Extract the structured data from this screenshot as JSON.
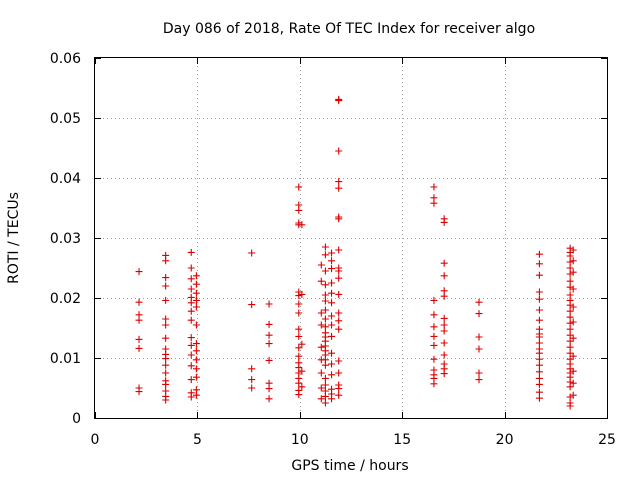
{
  "chart_data": {
    "type": "scatter",
    "title": "Day 086 of 2018, Rate Of TEC Index for receiver algo",
    "xlabel": "GPS time / hours",
    "ylabel": "ROTI / TECUs",
    "xlim": [
      0,
      25
    ],
    "ylim": [
      0,
      0.06
    ],
    "xticks": [
      0,
      5,
      10,
      15,
      20,
      25
    ],
    "yticks": [
      0,
      0.01,
      0.02,
      0.03,
      0.04,
      0.05,
      0.06
    ],
    "xtick_labels": [
      "0",
      "5",
      "10",
      "15",
      "20",
      "25"
    ],
    "ytick_labels": [
      "0",
      "0.01",
      "0.02",
      "0.03",
      "0.04",
      "0.05",
      "0.06"
    ],
    "grid": true,
    "marker": "+",
    "marker_color": "#dd0000",
    "points": [
      [
        2.15,
        0.0244
      ],
      [
        2.15,
        0.0193
      ],
      [
        2.15,
        0.0172
      ],
      [
        2.15,
        0.0163
      ],
      [
        2.15,
        0.0131
      ],
      [
        2.15,
        0.0116
      ],
      [
        2.15,
        0.005
      ],
      [
        2.15,
        0.0044
      ],
      [
        3.45,
        0.0271
      ],
      [
        3.45,
        0.0262
      ],
      [
        3.45,
        0.0234
      ],
      [
        3.45,
        0.022
      ],
      [
        3.45,
        0.0196
      ],
      [
        3.45,
        0.0165
      ],
      [
        3.45,
        0.0155
      ],
      [
        3.45,
        0.0133
      ],
      [
        3.45,
        0.0115
      ],
      [
        3.45,
        0.0106
      ],
      [
        3.45,
        0.0099
      ],
      [
        3.45,
        0.0088
      ],
      [
        3.45,
        0.0075
      ],
      [
        3.45,
        0.0062
      ],
      [
        3.45,
        0.0056
      ],
      [
        3.45,
        0.0045
      ],
      [
        3.45,
        0.0036
      ],
      [
        3.45,
        0.003
      ],
      [
        4.7,
        0.0276
      ],
      [
        4.7,
        0.025
      ],
      [
        4.7,
        0.0232
      ],
      [
        4.7,
        0.0215
      ],
      [
        4.7,
        0.0201
      ],
      [
        4.7,
        0.0192
      ],
      [
        4.7,
        0.0178
      ],
      [
        4.7,
        0.0163
      ],
      [
        4.7,
        0.0134
      ],
      [
        4.7,
        0.0121
      ],
      [
        4.7,
        0.0105
      ],
      [
        4.7,
        0.0087
      ],
      [
        4.7,
        0.0064
      ],
      [
        4.7,
        0.0042
      ],
      [
        4.7,
        0.0035
      ],
      [
        4.95,
        0.0237
      ],
      [
        4.95,
        0.0223
      ],
      [
        4.95,
        0.0208
      ],
      [
        4.95,
        0.0196
      ],
      [
        4.95,
        0.0185
      ],
      [
        4.95,
        0.0155
      ],
      [
        4.95,
        0.0124
      ],
      [
        4.95,
        0.0112
      ],
      [
        4.95,
        0.0097
      ],
      [
        4.95,
        0.0082
      ],
      [
        4.95,
        0.0068
      ],
      [
        4.95,
        0.0047
      ],
      [
        4.95,
        0.0038
      ],
      [
        7.65,
        0.0275
      ],
      [
        7.65,
        0.0189
      ],
      [
        7.65,
        0.0082
      ],
      [
        7.65,
        0.0064
      ],
      [
        7.65,
        0.005
      ],
      [
        8.5,
        0.019
      ],
      [
        8.5,
        0.0156
      ],
      [
        8.5,
        0.0138
      ],
      [
        8.5,
        0.0124
      ],
      [
        8.5,
        0.0096
      ],
      [
        8.5,
        0.0058
      ],
      [
        8.5,
        0.0049
      ],
      [
        8.5,
        0.0032
      ],
      [
        9.95,
        0.0385
      ],
      [
        9.95,
        0.0355
      ],
      [
        9.95,
        0.0346
      ],
      [
        9.95,
        0.0325
      ],
      [
        9.95,
        0.0322
      ],
      [
        9.95,
        0.021
      ],
      [
        9.95,
        0.0204
      ],
      [
        9.95,
        0.019
      ],
      [
        9.95,
        0.0175
      ],
      [
        9.95,
        0.0148
      ],
      [
        9.95,
        0.0136
      ],
      [
        9.95,
        0.0117
      ],
      [
        9.95,
        0.0103
      ],
      [
        9.95,
        0.0092
      ],
      [
        9.95,
        0.0084
      ],
      [
        9.95,
        0.0075
      ],
      [
        9.95,
        0.0066
      ],
      [
        9.95,
        0.0058
      ],
      [
        9.95,
        0.0046
      ],
      [
        9.95,
        0.0039
      ],
      [
        10.1,
        0.0322
      ],
      [
        10.1,
        0.0206
      ],
      [
        10.1,
        0.0123
      ],
      [
        10.1,
        0.0078
      ],
      [
        10.1,
        0.0052
      ],
      [
        11.05,
        0.0255
      ],
      [
        11.05,
        0.0228
      ],
      [
        11.05,
        0.0175
      ],
      [
        11.05,
        0.0155
      ],
      [
        11.05,
        0.0118
      ],
      [
        11.05,
        0.0097
      ],
      [
        11.05,
        0.0075
      ],
      [
        11.05,
        0.005
      ],
      [
        11.05,
        0.0032
      ],
      [
        11.25,
        0.0285
      ],
      [
        11.25,
        0.0272
      ],
      [
        11.25,
        0.0245
      ],
      [
        11.25,
        0.0222
      ],
      [
        11.25,
        0.0205
      ],
      [
        11.25,
        0.0195
      ],
      [
        11.25,
        0.018
      ],
      [
        11.25,
        0.0165
      ],
      [
        11.25,
        0.0152
      ],
      [
        11.25,
        0.0142
      ],
      [
        11.25,
        0.0135
      ],
      [
        11.25,
        0.0128
      ],
      [
        11.25,
        0.012
      ],
      [
        11.25,
        0.0112
      ],
      [
        11.25,
        0.0105
      ],
      [
        11.25,
        0.0097
      ],
      [
        11.25,
        0.0088
      ],
      [
        11.25,
        0.0066
      ],
      [
        11.25,
        0.0055
      ],
      [
        11.25,
        0.0045
      ],
      [
        11.25,
        0.0036
      ],
      [
        11.25,
        0.0025
      ],
      [
        11.55,
        0.0275
      ],
      [
        11.55,
        0.0262
      ],
      [
        11.55,
        0.0249
      ],
      [
        11.55,
        0.0225
      ],
      [
        11.55,
        0.0208
      ],
      [
        11.55,
        0.0192
      ],
      [
        11.55,
        0.017
      ],
      [
        11.55,
        0.0155
      ],
      [
        11.55,
        0.0136
      ],
      [
        11.55,
        0.0108
      ],
      [
        11.55,
        0.009
      ],
      [
        11.55,
        0.0072
      ],
      [
        11.55,
        0.0048
      ],
      [
        11.55,
        0.004
      ],
      [
        11.55,
        0.0032
      ],
      [
        11.9,
        0.0531
      ],
      [
        11.9,
        0.0529
      ],
      [
        11.9,
        0.0445
      ],
      [
        11.9,
        0.0394
      ],
      [
        11.9,
        0.0383
      ],
      [
        11.9,
        0.0335
      ],
      [
        11.9,
        0.0332
      ],
      [
        11.9,
        0.028
      ],
      [
        11.9,
        0.025
      ],
      [
        11.9,
        0.0245
      ],
      [
        11.9,
        0.0233
      ],
      [
        11.9,
        0.0206
      ],
      [
        11.9,
        0.0175
      ],
      [
        11.9,
        0.0162
      ],
      [
        11.9,
        0.0148
      ],
      [
        11.9,
        0.0095
      ],
      [
        11.9,
        0.0075
      ],
      [
        11.9,
        0.0055
      ],
      [
        11.9,
        0.0049
      ],
      [
        11.9,
        0.0038
      ],
      [
        16.55,
        0.0385
      ],
      [
        16.55,
        0.0367
      ],
      [
        16.55,
        0.0358
      ],
      [
        16.55,
        0.0196
      ],
      [
        16.55,
        0.0172
      ],
      [
        16.55,
        0.0152
      ],
      [
        16.55,
        0.0136
      ],
      [
        16.55,
        0.0121
      ],
      [
        16.55,
        0.0098
      ],
      [
        16.55,
        0.008
      ],
      [
        16.55,
        0.0072
      ],
      [
        16.55,
        0.0066
      ],
      [
        16.55,
        0.0057
      ],
      [
        17.05,
        0.0332
      ],
      [
        17.05,
        0.0326
      ],
      [
        17.05,
        0.0258
      ],
      [
        17.05,
        0.0237
      ],
      [
        17.05,
        0.0212
      ],
      [
        17.05,
        0.0203
      ],
      [
        17.05,
        0.0166
      ],
      [
        17.05,
        0.0155
      ],
      [
        17.05,
        0.0145
      ],
      [
        17.05,
        0.0125
      ],
      [
        17.05,
        0.0105
      ],
      [
        17.05,
        0.009
      ],
      [
        17.05,
        0.0082
      ],
      [
        17.05,
        0.0074
      ],
      [
        18.75,
        0.0193
      ],
      [
        18.75,
        0.0174
      ],
      [
        18.75,
        0.0135
      ],
      [
        18.75,
        0.0115
      ],
      [
        18.75,
        0.0075
      ],
      [
        18.75,
        0.0064
      ],
      [
        21.7,
        0.0273
      ],
      [
        21.7,
        0.0257
      ],
      [
        21.7,
        0.0238
      ],
      [
        21.7,
        0.021
      ],
      [
        21.7,
        0.0198
      ],
      [
        21.7,
        0.018
      ],
      [
        21.7,
        0.0163
      ],
      [
        21.7,
        0.0148
      ],
      [
        21.7,
        0.014
      ],
      [
        21.7,
        0.0135
      ],
      [
        21.7,
        0.0125
      ],
      [
        21.7,
        0.0115
      ],
      [
        21.7,
        0.0108
      ],
      [
        21.7,
        0.0098
      ],
      [
        21.7,
        0.0088
      ],
      [
        21.7,
        0.0077
      ],
      [
        21.7,
        0.0066
      ],
      [
        21.7,
        0.0056
      ],
      [
        21.7,
        0.0043
      ],
      [
        21.7,
        0.0033
      ],
      [
        23.2,
        0.0283
      ],
      [
        23.2,
        0.0276
      ],
      [
        23.2,
        0.027
      ],
      [
        23.2,
        0.026
      ],
      [
        23.2,
        0.025
      ],
      [
        23.2,
        0.024
      ],
      [
        23.2,
        0.0228
      ],
      [
        23.2,
        0.0218
      ],
      [
        23.2,
        0.0205
      ],
      [
        23.2,
        0.0196
      ],
      [
        23.2,
        0.0188
      ],
      [
        23.2,
        0.0178
      ],
      [
        23.2,
        0.0168
      ],
      [
        23.2,
        0.0158
      ],
      [
        23.2,
        0.0148
      ],
      [
        23.2,
        0.0138
      ],
      [
        23.2,
        0.0128
      ],
      [
        23.2,
        0.0118
      ],
      [
        23.2,
        0.0108
      ],
      [
        23.2,
        0.0098
      ],
      [
        23.2,
        0.009
      ],
      [
        23.2,
        0.0082
      ],
      [
        23.2,
        0.0075
      ],
      [
        23.2,
        0.0068
      ],
      [
        23.2,
        0.006
      ],
      [
        23.2,
        0.0052
      ],
      [
        23.2,
        0.0035
      ],
      [
        23.2,
        0.0025
      ],
      [
        23.2,
        0.002
      ],
      [
        23.35,
        0.028
      ],
      [
        23.35,
        0.0262
      ],
      [
        23.35,
        0.0243
      ],
      [
        23.35,
        0.0215
      ],
      [
        23.35,
        0.0185
      ],
      [
        23.35,
        0.016
      ],
      [
        23.35,
        0.0133
      ],
      [
        23.35,
        0.0103
      ],
      [
        23.35,
        0.0078
      ],
      [
        23.35,
        0.0058
      ],
      [
        23.35,
        0.0038
      ]
    ]
  }
}
